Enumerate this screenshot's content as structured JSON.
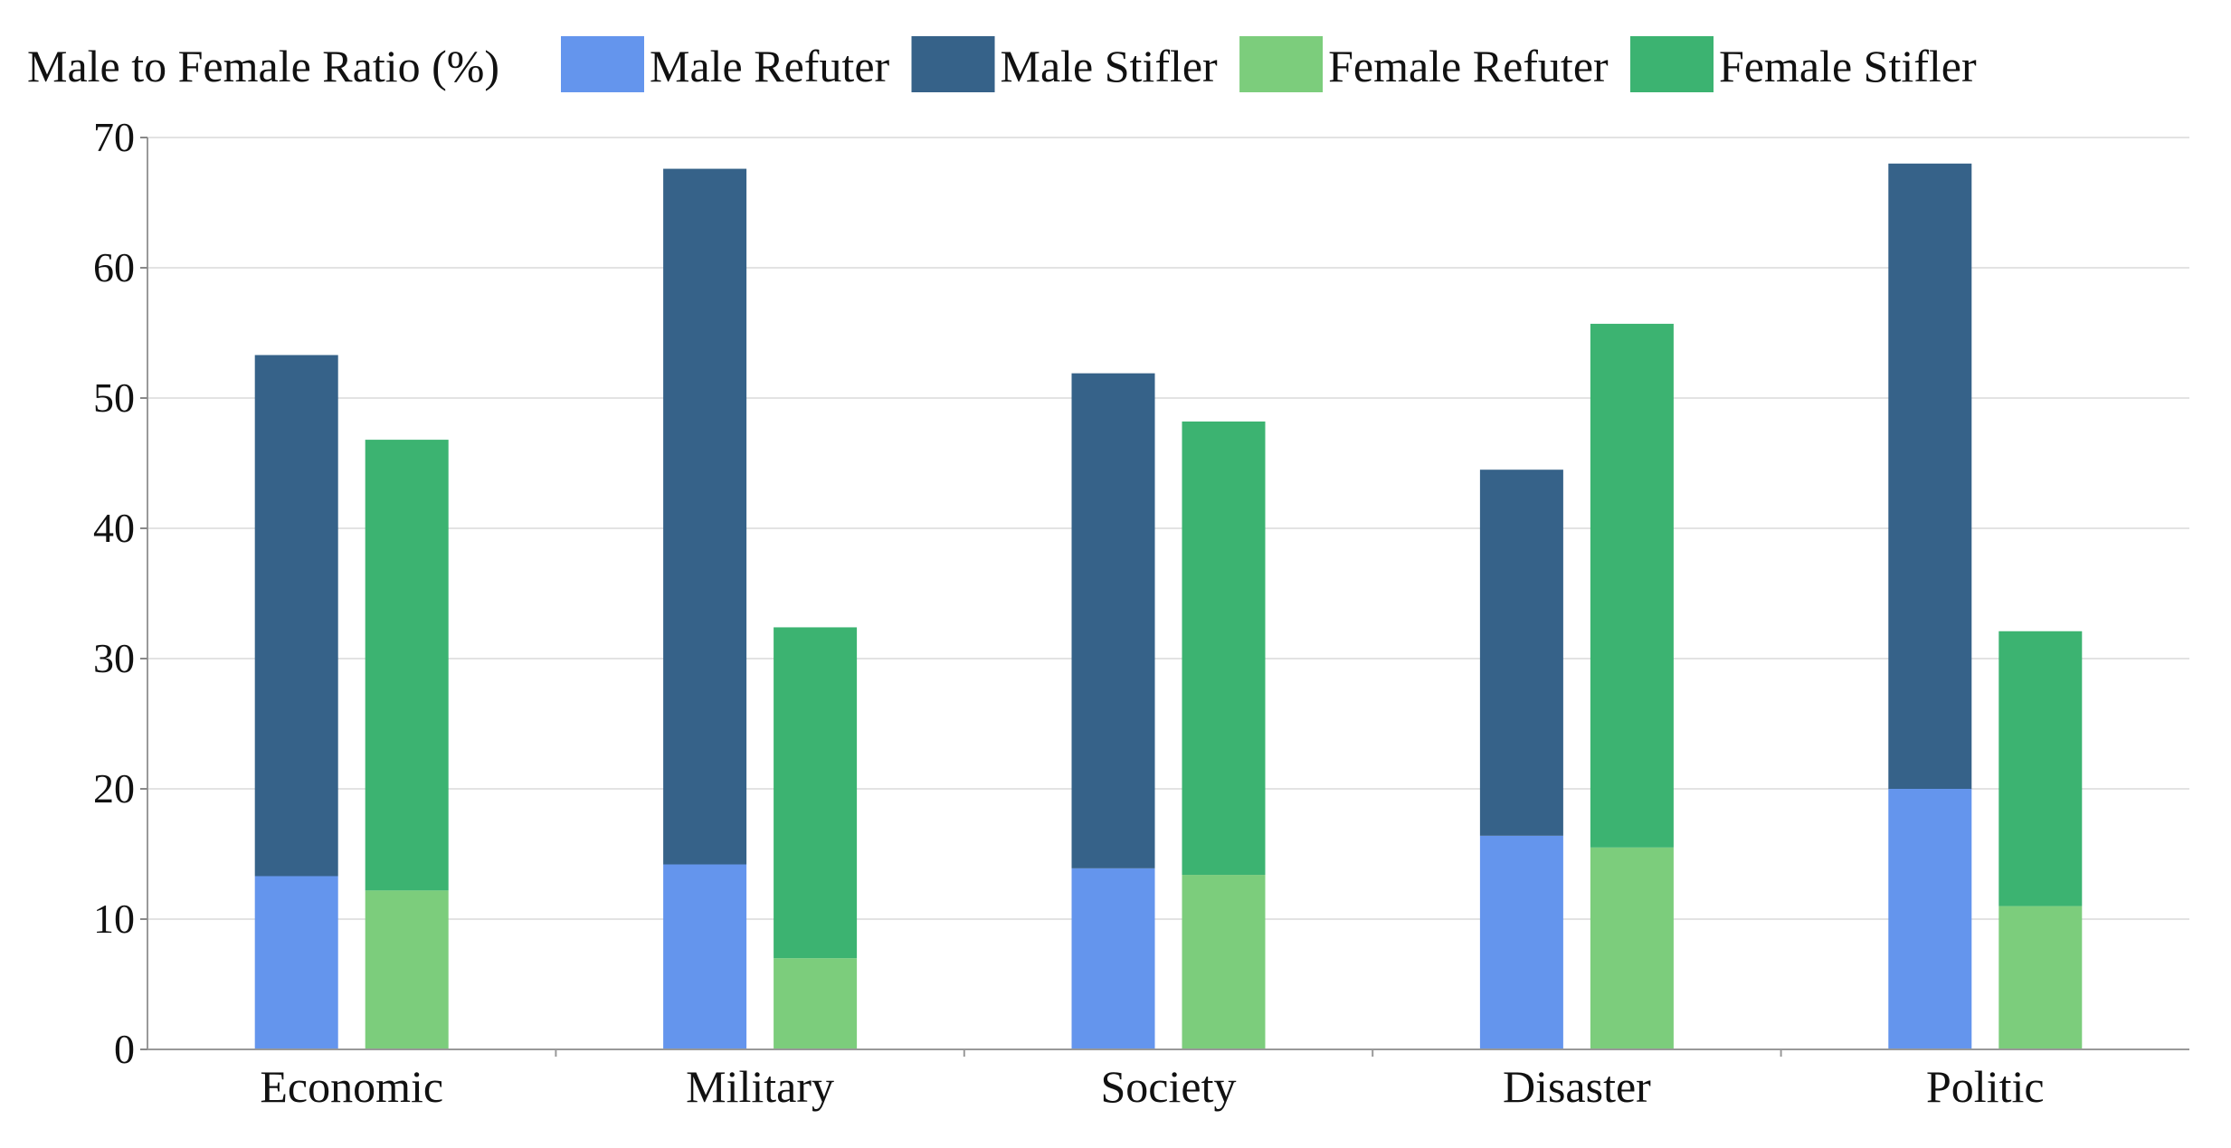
{
  "chart_data": {
    "type": "bar",
    "stacked": true,
    "title": "Male to Female Ratio (%)",
    "xlabel": "",
    "ylabel": "",
    "ylim": [
      0,
      70
    ],
    "yticks": [
      0,
      10,
      20,
      30,
      40,
      50,
      60,
      70
    ],
    "grid": true,
    "legend_position": "top",
    "categories": [
      "Economic",
      "Military",
      "Society",
      "Disaster",
      "Politic"
    ],
    "groups": [
      {
        "name": "Male",
        "series": [
          {
            "name": "Male Refuter",
            "color": "#6495ED",
            "values": [
              13.3,
              14.2,
              13.9,
              16.4,
              20.0
            ]
          },
          {
            "name": "Male Stifler",
            "color": "#366289",
            "values": [
              40.0,
              53.4,
              38.0,
              28.1,
              48.0
            ]
          }
        ]
      },
      {
        "name": "Female",
        "series": [
          {
            "name": "Female Refuter",
            "color": "#7CCD7C",
            "values": [
              12.2,
              7.0,
              13.4,
              15.5,
              11.0
            ]
          },
          {
            "name": "Female Stifler",
            "color": "#3CB371",
            "values": [
              34.6,
              25.4,
              34.8,
              40.2,
              21.1
            ]
          }
        ]
      }
    ],
    "legend": [
      {
        "label": "Male Refuter",
        "color": "#6495ED"
      },
      {
        "label": "Male Stifler",
        "color": "#366289"
      },
      {
        "label": "Female Refuter",
        "color": "#7CCD7C"
      },
      {
        "label": "Female Stifler",
        "color": "#3CB371"
      }
    ]
  }
}
